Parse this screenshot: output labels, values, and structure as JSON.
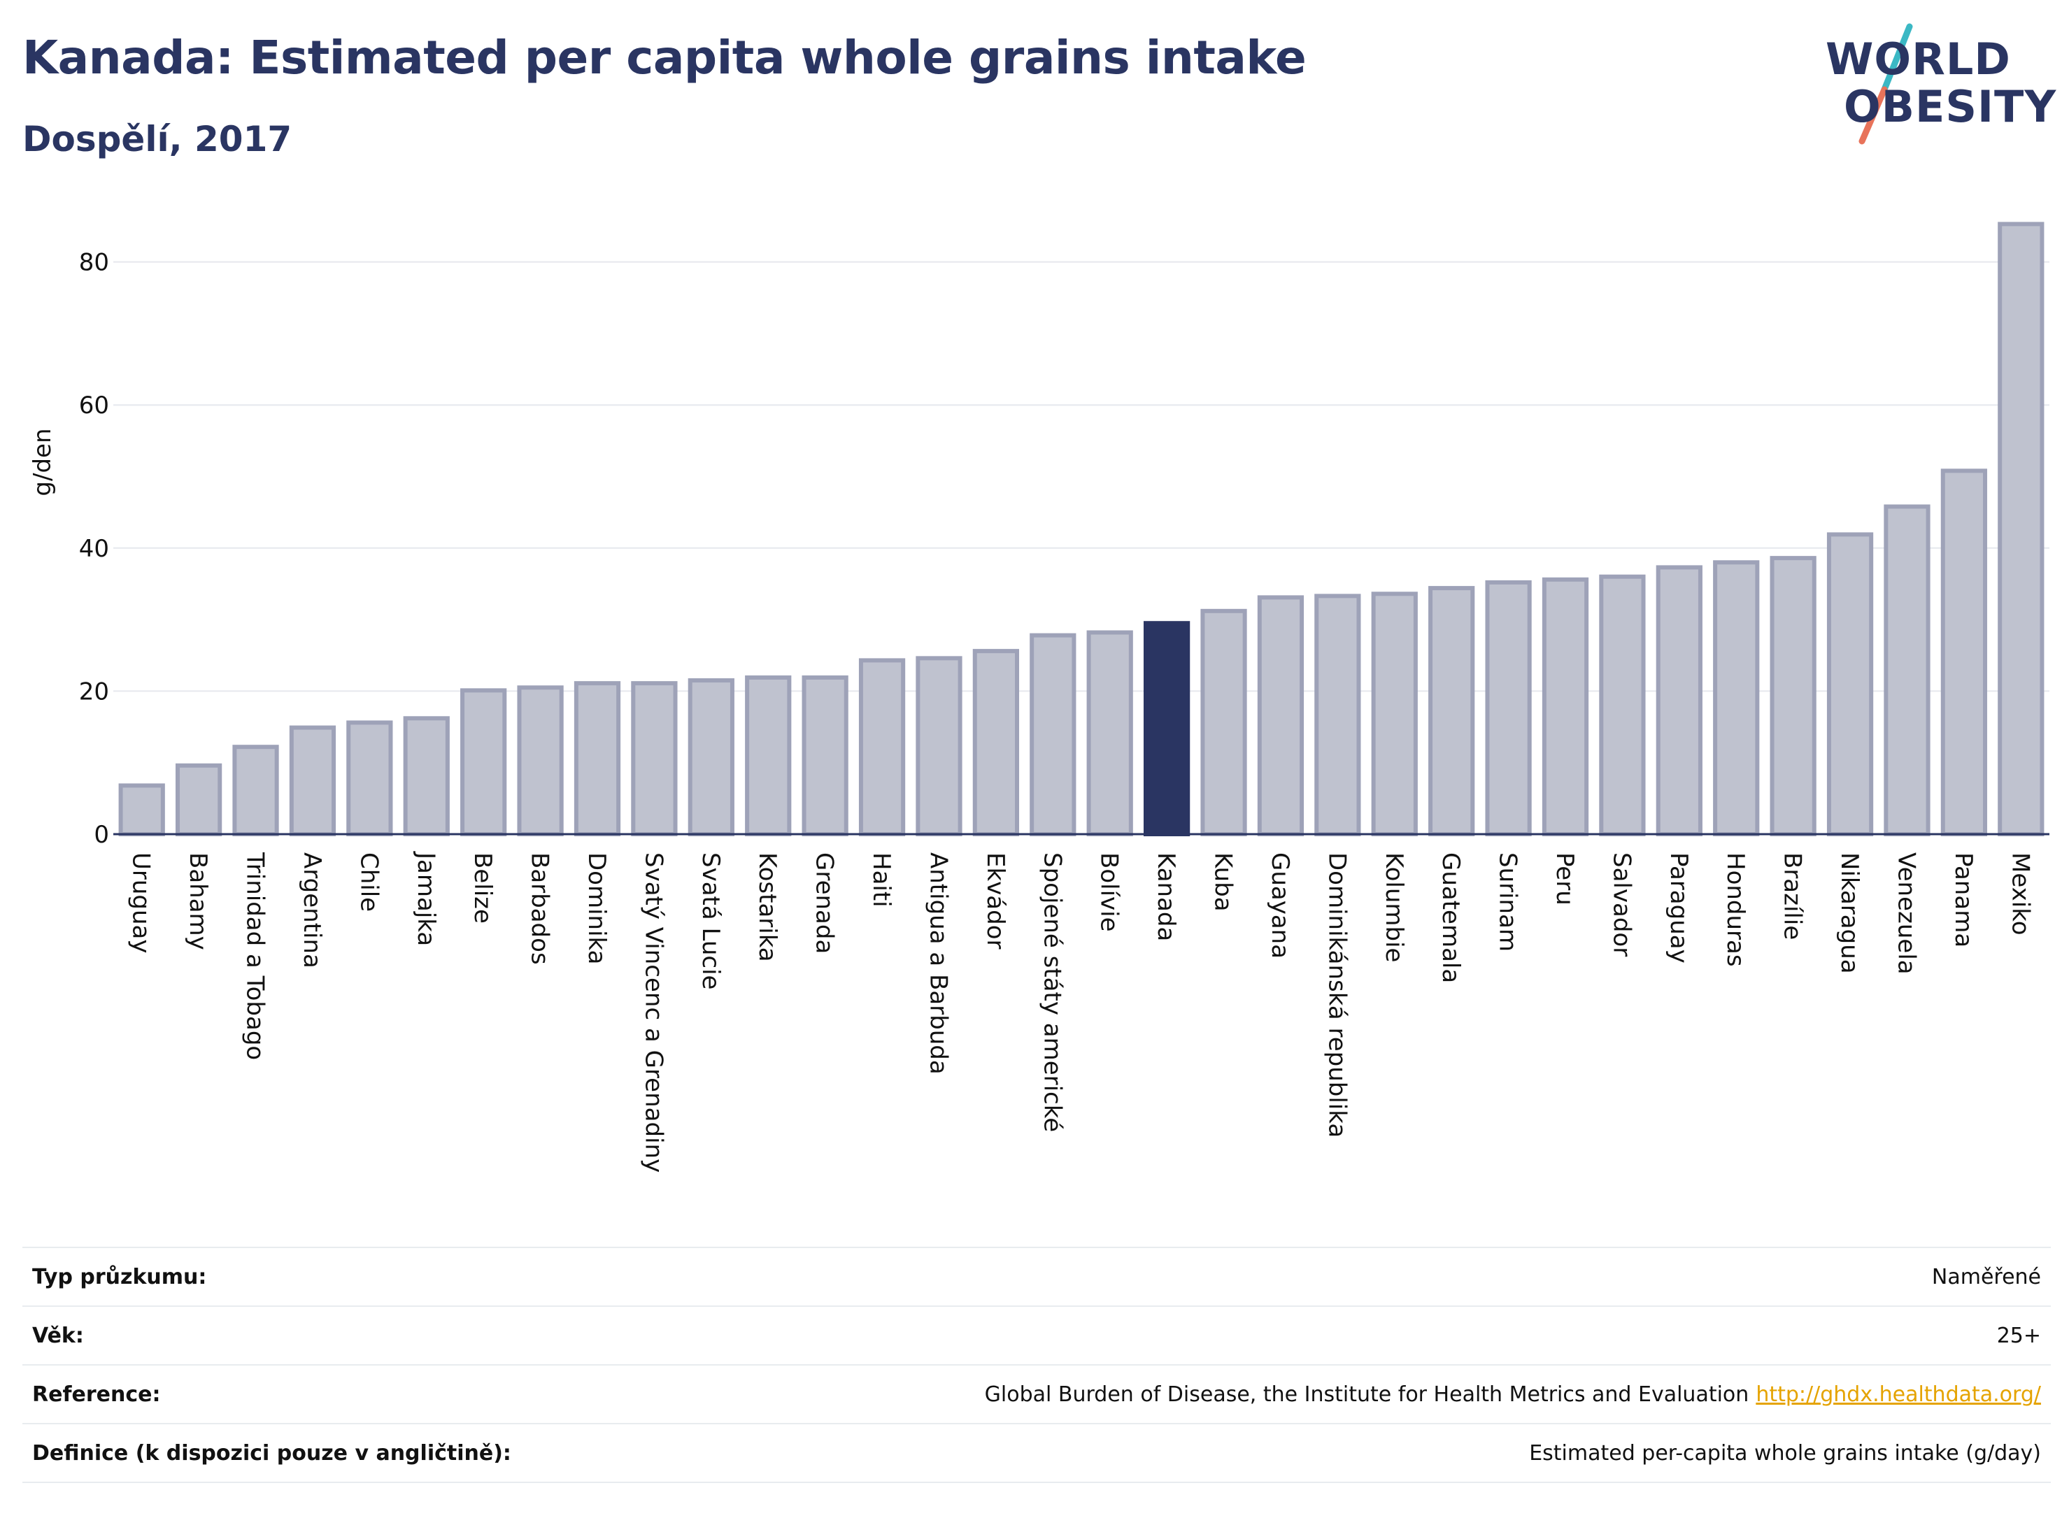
{
  "header": {
    "title": "Kanada: Estimated per capita whole grains intake",
    "subtitle": "Dospělí, 2017"
  },
  "logo": {
    "line1": "WORLD",
    "line2": "OBESITY",
    "colors": {
      "slash_top": "#3bb8c4",
      "slash_bottom": "#e8735a"
    }
  },
  "chart_data": {
    "type": "bar",
    "title": "Kanada: Estimated per capita whole grains intake",
    "subtitle": "Dospělí, 2017",
    "ylabel": "g/den",
    "xlabel": "",
    "ylim": [
      0,
      90
    ],
    "yticks": [
      0,
      20,
      40,
      60,
      80
    ],
    "grid": true,
    "highlight": "Kanada",
    "colors": {
      "bar": "#bfc2cf",
      "bar_border": "#9ea2b8",
      "highlight": "#2a3562",
      "grid": "#e6e8ee",
      "axis": "#2a3562"
    },
    "categories": [
      "Uruguay",
      "Bahamy",
      "Trinidad a Tobago",
      "Argentina",
      "Chile",
      "Jamajka",
      "Belize",
      "Barbados",
      "Dominika",
      "Svatý Vincenc a Grenadiny",
      "Svatá Lucie",
      "Kostarika",
      "Grenada",
      "Haiti",
      "Antigua a Barbuda",
      "Ekvádor",
      "Spojené státy americké",
      "Bolívie",
      "Kanada",
      "Kuba",
      "Guayana",
      "Dominikánská republika",
      "Kolumbie",
      "Guatemala",
      "Surinam",
      "Peru",
      "Salvador",
      "Paraguay",
      "Honduras",
      "Brazílie",
      "Nikaragua",
      "Venezuela",
      "Panama",
      "Mexiko"
    ],
    "values": [
      6.8,
      9.6,
      12.2,
      14.9,
      15.6,
      16.2,
      20.1,
      20.5,
      21.1,
      21.1,
      21.5,
      21.9,
      21.9,
      24.3,
      24.6,
      25.6,
      27.8,
      28.2,
      29.5,
      31.2,
      33.1,
      33.3,
      33.6,
      34.4,
      35.2,
      35.6,
      36.0,
      37.3,
      38.0,
      38.6,
      41.9,
      45.8,
      50.8,
      85.3
    ]
  },
  "info": {
    "rows": [
      {
        "label": "Typ průzkumu:",
        "value": "Naměřené",
        "link": ""
      },
      {
        "label": "Věk:",
        "value": "25+",
        "link": ""
      },
      {
        "label": "Reference:",
        "value": "Global Burden of Disease, the Institute for Health Metrics and Evaluation",
        "link": "http://ghdx.healthdata.org/"
      },
      {
        "label": "Definice (k dispozici pouze v angličtině):",
        "value": "Estimated per-capita whole grains intake (g/day)",
        "link": ""
      }
    ]
  }
}
